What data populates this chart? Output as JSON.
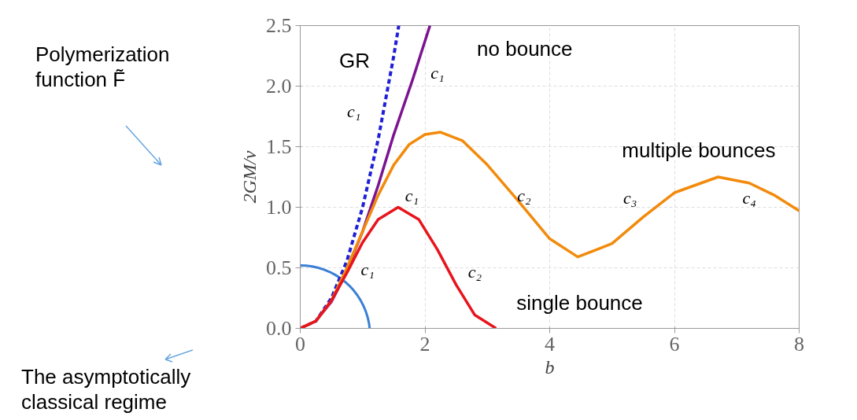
{
  "chart_data": {
    "type": "line",
    "xlabel": "b",
    "ylabel": "2GM/v",
    "xlim": [
      0,
      8
    ],
    "ylim": [
      0,
      2.5
    ],
    "xticks": [
      0,
      2,
      4,
      6,
      8
    ],
    "yticks": [
      {
        "value": 0,
        "label": "0.0"
      },
      {
        "value": 0.5,
        "label": "0.5"
      },
      {
        "value": 1,
        "label": "1.0"
      },
      {
        "value": 1.5,
        "label": "1.5"
      },
      {
        "value": 2,
        "label": "2.0"
      },
      {
        "value": 2.5,
        "label": "2.5"
      }
    ],
    "grid": true,
    "series": [
      {
        "name": "GR",
        "color": "#1f1fd6",
        "line_style": "dashed",
        "x": [
          0,
          0.25,
          0.5,
          0.75,
          1,
          1.25,
          1.5,
          1.58
        ],
        "values": [
          0,
          0.06,
          0.25,
          0.56,
          1,
          1.56,
          2.25,
          2.5
        ]
      },
      {
        "name": "no bounce",
        "color": "#7b1490",
        "line_style": "solid",
        "x": [
          0,
          0.25,
          0.5,
          0.7,
          1,
          1.25,
          1.5,
          1.8,
          2.08
        ],
        "values": [
          0,
          0.06,
          0.22,
          0.42,
          0.8,
          1.18,
          1.6,
          2.05,
          2.5
        ]
      },
      {
        "name": "multiple bounces",
        "color": "#f28a0c",
        "line_style": "solid",
        "x": [
          0,
          0.25,
          0.5,
          0.75,
          1,
          1.25,
          1.5,
          1.75,
          2,
          2.25,
          2.6,
          3,
          3.5,
          4,
          4.45,
          5,
          5.5,
          6,
          6.7,
          7.2,
          7.6,
          8
        ],
        "values": [
          0,
          0.06,
          0.23,
          0.5,
          0.8,
          1.1,
          1.35,
          1.52,
          1.6,
          1.62,
          1.55,
          1.35,
          1.05,
          0.74,
          0.59,
          0.7,
          0.92,
          1.12,
          1.25,
          1.2,
          1.1,
          0.97
        ]
      },
      {
        "name": "single bounce",
        "color": "#e8141c",
        "line_style": "solid",
        "x": [
          0,
          0.25,
          0.5,
          0.75,
          1,
          1.25,
          1.57,
          1.9,
          2.2,
          2.5,
          2.8,
          3.14
        ],
        "values": [
          0,
          0.06,
          0.23,
          0.46,
          0.71,
          0.9,
          1,
          0.9,
          0.65,
          0.36,
          0.11,
          0
        ]
      }
    ],
    "annotations": [
      "c₁",
      "c₁",
      "c₁",
      "c₂",
      "c₃",
      "c₄",
      "c₁",
      "c₂",
      "Polymerization\nfunction F̃",
      "The asymptotically\nclassical regime"
    ]
  }
}
